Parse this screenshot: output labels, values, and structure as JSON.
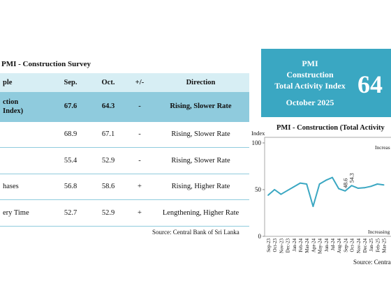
{
  "survey": {
    "title": "PMI - Construction Survey",
    "headers": [
      "ple",
      "Sep.",
      "Oct.",
      "+/-",
      "Direction"
    ],
    "rows": [
      {
        "label1": "ction",
        "label2": "Index)",
        "sep": "67.6",
        "oct": "64.3",
        "change": "-",
        "direction": "Rising, Slower Rate"
      },
      {
        "label": "",
        "sep": "68.9",
        "oct": "67.1",
        "change": "-",
        "direction": "Rising, Slower Rate"
      },
      {
        "label": "",
        "sep": "55.4",
        "oct": "52.9",
        "change": "-",
        "direction": "Rising, Slower Rate"
      },
      {
        "label": "hases",
        "sep": "56.8",
        "oct": "58.6",
        "change": "+",
        "direction": "Rising, Higher Rate"
      },
      {
        "label": "ery Time",
        "sep": "52.7",
        "oct": "52.9",
        "change": "+",
        "direction": "Lengthening, Higher Rate"
      }
    ],
    "source": "Source: Central Bank of Sri Lanka"
  },
  "pmi_box": {
    "line1": "PMI",
    "line2": "Construction",
    "line3": "Total Activity Index",
    "line4": "October 2025",
    "value_visible": "64",
    "color": "#3aa7c2"
  },
  "chart_caption": {
    "title": "PMI - Construction (Total Activity",
    "y_label": "Index",
    "source": "Source: Centra"
  },
  "chart_data": {
    "type": "line",
    "title": "PMI - Construction (Total Activity",
    "ylabel": "Index",
    "ylim": [
      0,
      100
    ],
    "yticks": [
      0,
      50,
      100
    ],
    "x": [
      "Sep-23",
      "Oct-23",
      "Nov-23",
      "Dec-23",
      "Jan-24",
      "Feb-24",
      "Mar-24",
      "Apr-24",
      "May-24",
      "Jun-24",
      "Jul-24",
      "Aug-24",
      "Sep-24",
      "Oct-24",
      "Nov-24",
      "Dec-24",
      "Jan-25",
      "Feb-25",
      "Mar-25"
    ],
    "series": [
      {
        "values": [
          44,
          50,
          45,
          49,
          53,
          57,
          56,
          32,
          56,
          60,
          63,
          51,
          48.6,
          54.3,
          51.5,
          52,
          53.5,
          56,
          55
        ],
        "color": "#3aa7c2"
      }
    ],
    "data_labels": [
      {
        "x": "Sep-24",
        "text": "48.6"
      },
      {
        "x": "Oct-24",
        "text": "54.3"
      }
    ],
    "annotations": [
      "Increas",
      "Increasing"
    ],
    "grid": false
  }
}
